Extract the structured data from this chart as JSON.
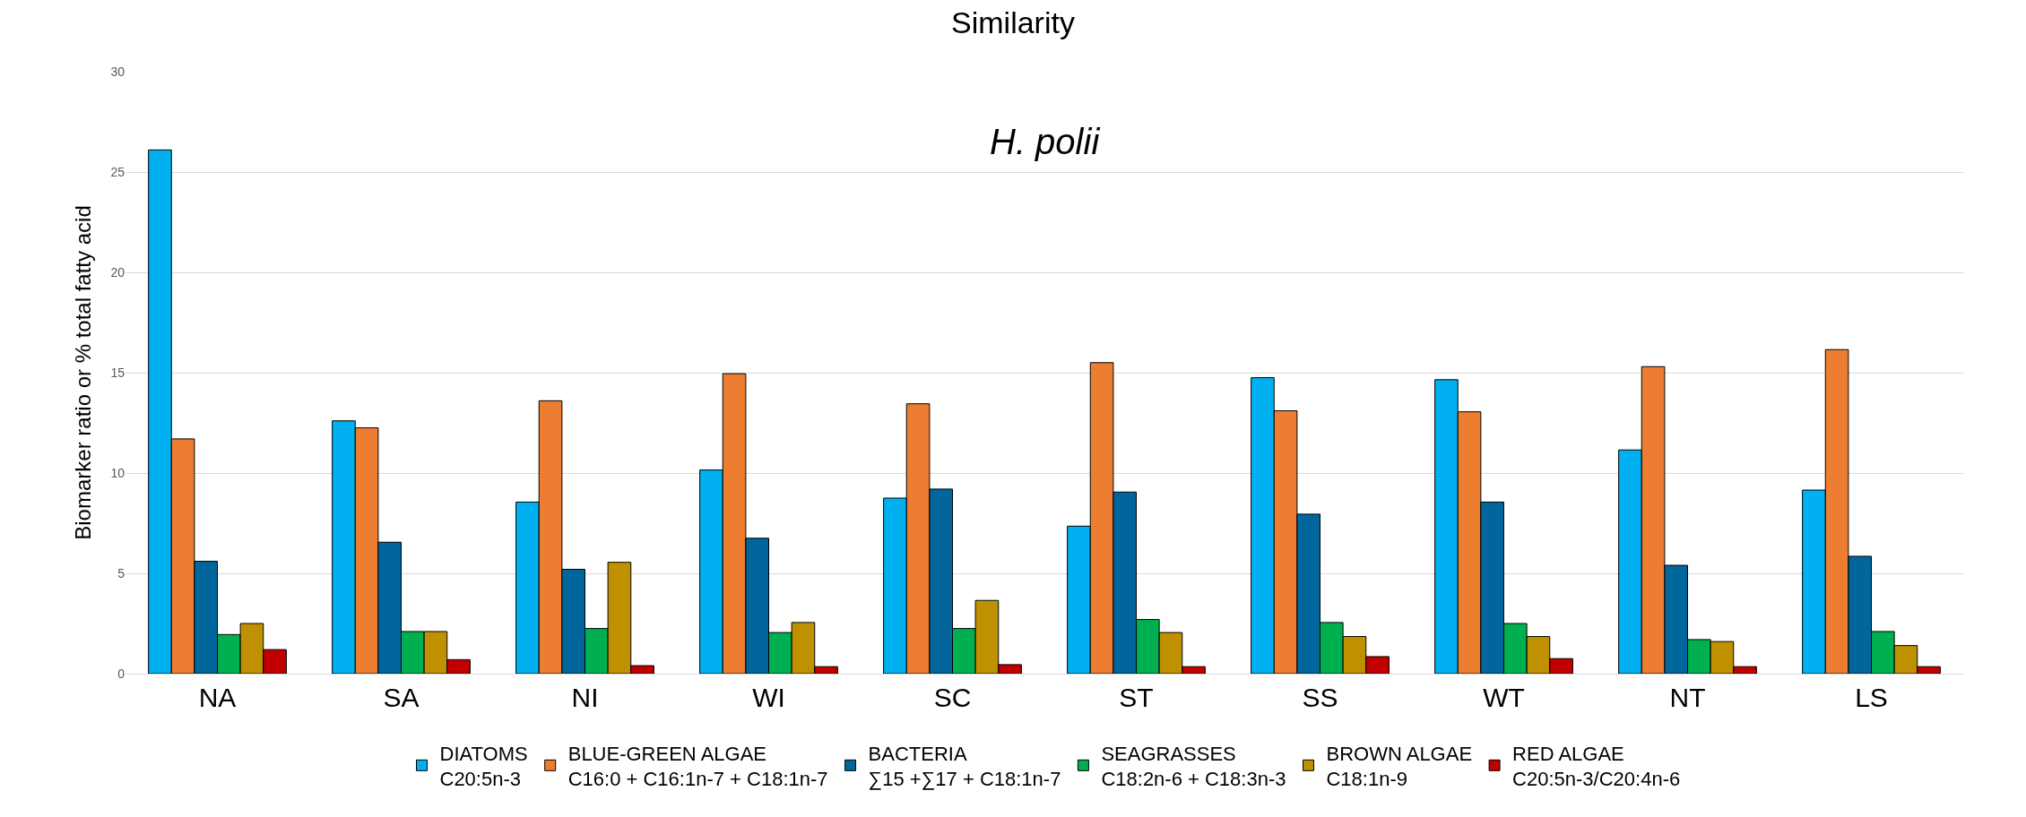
{
  "chart_data": {
    "type": "bar",
    "title": "Similarity",
    "subtitle": "H. polii",
    "ylabel": "Biomarker ratio or % total fatty acid",
    "categories": [
      "NA",
      "SA",
      "NI",
      "WI",
      "SC",
      "ST",
      "SS",
      "WT",
      "NT",
      "LS"
    ],
    "series": [
      {
        "name": "DIATOMS\nC20:5n-3",
        "color": "#00b0f0",
        "values": [
          26.1,
          12.6,
          8.55,
          10.15,
          8.75,
          7.35,
          14.75,
          14.65,
          11.15,
          9.15
        ]
      },
      {
        "name": "BLUE-GREEN ALGAE\nC16:0 + C16:1n-7 + C18:1n-7",
        "color": "#ed7d31",
        "values": [
          11.7,
          12.25,
          13.6,
          14.95,
          13.45,
          15.5,
          13.1,
          13.05,
          15.3,
          16.15
        ]
      },
      {
        "name": "BACTERIA\n∑15 +∑17 + C18:1n-7",
        "color": "#00669c",
        "values": [
          5.6,
          6.55,
          5.2,
          6.75,
          9.2,
          9.05,
          7.95,
          8.55,
          5.4,
          5.85
        ]
      },
      {
        "name": "SEAGRASSES\nC18:2n-6 + C18:3n-3",
        "color": "#00b050",
        "values": [
          1.95,
          2.1,
          2.25,
          2.05,
          2.25,
          2.7,
          2.55,
          2.5,
          1.7,
          2.1
        ]
      },
      {
        "name": "BROWN ALGAE\nC18:1n-9",
        "color": "#bf9000",
        "values": [
          2.5,
          2.1,
          5.55,
          2.55,
          3.65,
          2.05,
          1.85,
          1.85,
          1.6,
          1.4
        ]
      },
      {
        "name": "RED ALGAE\nC20:5n-3/C20:4n-6",
        "color": "#c00000",
        "values": [
          1.2,
          0.7,
          0.4,
          0.35,
          0.45,
          0.35,
          0.85,
          0.75,
          0.35,
          0.35
        ]
      }
    ],
    "ylim": [
      0,
      30
    ],
    "yticks": [
      0,
      5,
      10,
      15,
      20,
      25,
      30
    ],
    "grid": "y",
    "legend": "bottom"
  }
}
